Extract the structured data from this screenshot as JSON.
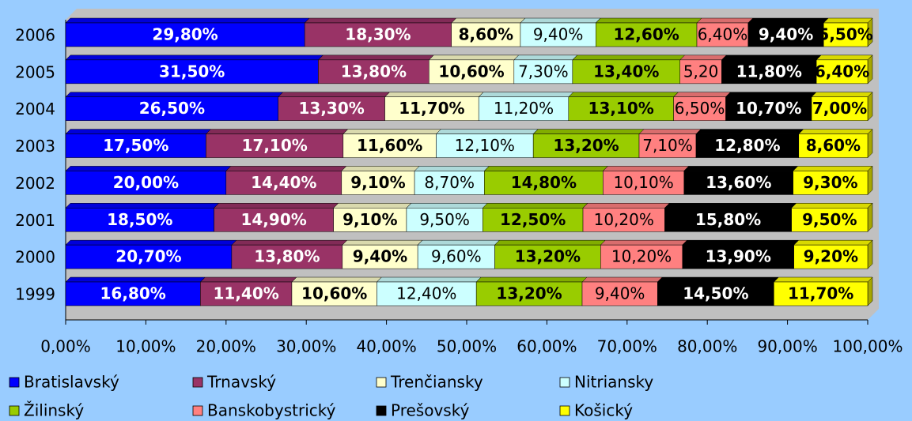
{
  "chart_data": {
    "type": "stacked-bar-horizontal",
    "categories": [
      "1999",
      "2000",
      "2001",
      "2002",
      "2003",
      "2004",
      "2005",
      "2006"
    ],
    "series": [
      {
        "name": "Bratislavský",
        "color": "#0000ff",
        "values": [
          16.8,
          20.7,
          18.5,
          20.0,
          17.5,
          26.5,
          31.5,
          29.8
        ],
        "value_labels": [
          "16,80%",
          "20,70%",
          "18,50%",
          "20,00%",
          "17,50%",
          "26,50%",
          "31,50%",
          "29,80%"
        ]
      },
      {
        "name": "Trnavský",
        "color": "#993366",
        "values": [
          11.4,
          13.8,
          14.9,
          14.4,
          17.1,
          13.3,
          13.8,
          18.3
        ],
        "value_labels": [
          "11,40%",
          "13,80%",
          "14,90%",
          "14,40%",
          "17,10%",
          "13,30%",
          "13,80%",
          "18,30%"
        ]
      },
      {
        "name": "Trenčiansky",
        "color": "#ffffcc",
        "values": [
          10.6,
          9.4,
          9.1,
          9.1,
          11.6,
          11.7,
          10.6,
          8.6
        ],
        "value_labels": [
          "10,60%",
          "9,40%",
          "9,10%",
          "9,10%",
          "11,60%",
          "11,70%",
          "10,60%",
          "8,60%"
        ]
      },
      {
        "name": "Nitriansky",
        "color": "#ccffff",
        "values": [
          12.4,
          9.6,
          9.5,
          8.7,
          12.1,
          11.2,
          7.3,
          9.4
        ],
        "value_labels": [
          "12,40%",
          "9,60%",
          "9,50%",
          "8,70%",
          "12,10%",
          "11,20%",
          "7,30%",
          "9,40%"
        ]
      },
      {
        "name": "Žilinský",
        "color": "#99cc00",
        "values": [
          13.2,
          13.2,
          12.5,
          14.8,
          13.2,
          13.1,
          13.4,
          12.6
        ],
        "value_labels": [
          "13,20%",
          "13,20%",
          "12,50%",
          "14,80%",
          "13,20%",
          "13,10%",
          "13,40%",
          "12,60%"
        ]
      },
      {
        "name": "Banskobystrický",
        "color": "#ff8080",
        "values": [
          9.4,
          10.2,
          10.2,
          10.1,
          7.1,
          6.5,
          5.2,
          6.4
        ],
        "value_labels": [
          "9,40%",
          "10,20%",
          "10,20%",
          "10,10%",
          "7,10%",
          "6,50%",
          "5,20",
          "6,40%"
        ]
      },
      {
        "name": "Prešovský",
        "color": "#000000",
        "values": [
          14.5,
          13.9,
          15.8,
          13.6,
          12.8,
          10.7,
          11.8,
          9.4
        ],
        "value_labels": [
          "14,50%",
          "13,90%",
          "15,80%",
          "13,60%",
          "12,80%",
          "10,70%",
          "11,80%",
          "9,40%"
        ]
      },
      {
        "name": "Košický",
        "color": "#ffff00",
        "values": [
          11.7,
          9.2,
          9.5,
          9.3,
          8.6,
          7.0,
          6.4,
          5.5
        ],
        "value_labels": [
          "11,70%",
          "9,20%",
          "9,50%",
          "9,30%",
          "8,60%",
          "7,00%",
          "6,40%",
          "5,50%"
        ]
      }
    ],
    "xlim": [
      0,
      100
    ],
    "xticks": [
      {
        "value": 0,
        "label": "0,00%"
      },
      {
        "value": 10,
        "label": "10,00%"
      },
      {
        "value": 20,
        "label": "20,00%"
      },
      {
        "value": 30,
        "label": "30,00%"
      },
      {
        "value": 40,
        "label": "40,00%"
      },
      {
        "value": 50,
        "label": "50,00%"
      },
      {
        "value": 60,
        "label": "60,00%"
      },
      {
        "value": 70,
        "label": "70,00%"
      },
      {
        "value": 80,
        "label": "80,00%"
      },
      {
        "value": 90,
        "label": "90,00%"
      },
      {
        "value": 100,
        "label": "100,00%"
      }
    ]
  }
}
